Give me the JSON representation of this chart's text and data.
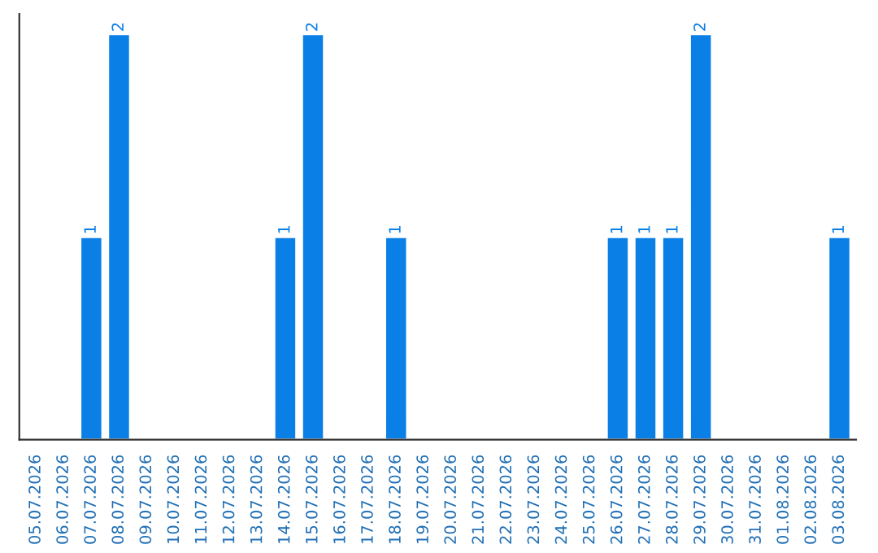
{
  "chart_data": {
    "type": "bar",
    "categories": [
      "05.07.2026",
      "06.07.2026",
      "07.07.2026",
      "08.07.2026",
      "09.07.2026",
      "10.07.2026",
      "11.07.2026",
      "12.07.2026",
      "13.07.2026",
      "14.07.2026",
      "15.07.2026",
      "16.07.2026",
      "17.07.2026",
      "18.07.2026",
      "19.07.2026",
      "20.07.2026",
      "21.07.2026",
      "22.07.2026",
      "23.07.2026",
      "24.07.2026",
      "25.07.2026",
      "26.07.2026",
      "27.07.2026",
      "28.07.2026",
      "29.07.2026",
      "30.07.2026",
      "31.07.2026",
      "01.08.2026",
      "02.08.2026",
      "03.08.2026"
    ],
    "values": [
      null,
      null,
      1,
      2,
      null,
      null,
      null,
      null,
      null,
      1,
      2,
      null,
      null,
      1,
      null,
      null,
      null,
      null,
      null,
      null,
      null,
      1,
      1,
      1,
      2,
      null,
      null,
      null,
      null,
      1
    ],
    "value_labels": [
      null,
      null,
      "1",
      "2",
      null,
      null,
      null,
      null,
      null,
      "1",
      "2",
      null,
      null,
      "1",
      null,
      null,
      null,
      null,
      null,
      null,
      null,
      "1",
      "1",
      "1",
      "2",
      null,
      null,
      null,
      null,
      "1"
    ],
    "color": "#0a7fe6",
    "tick_labels": "x",
    "grid": false
  }
}
